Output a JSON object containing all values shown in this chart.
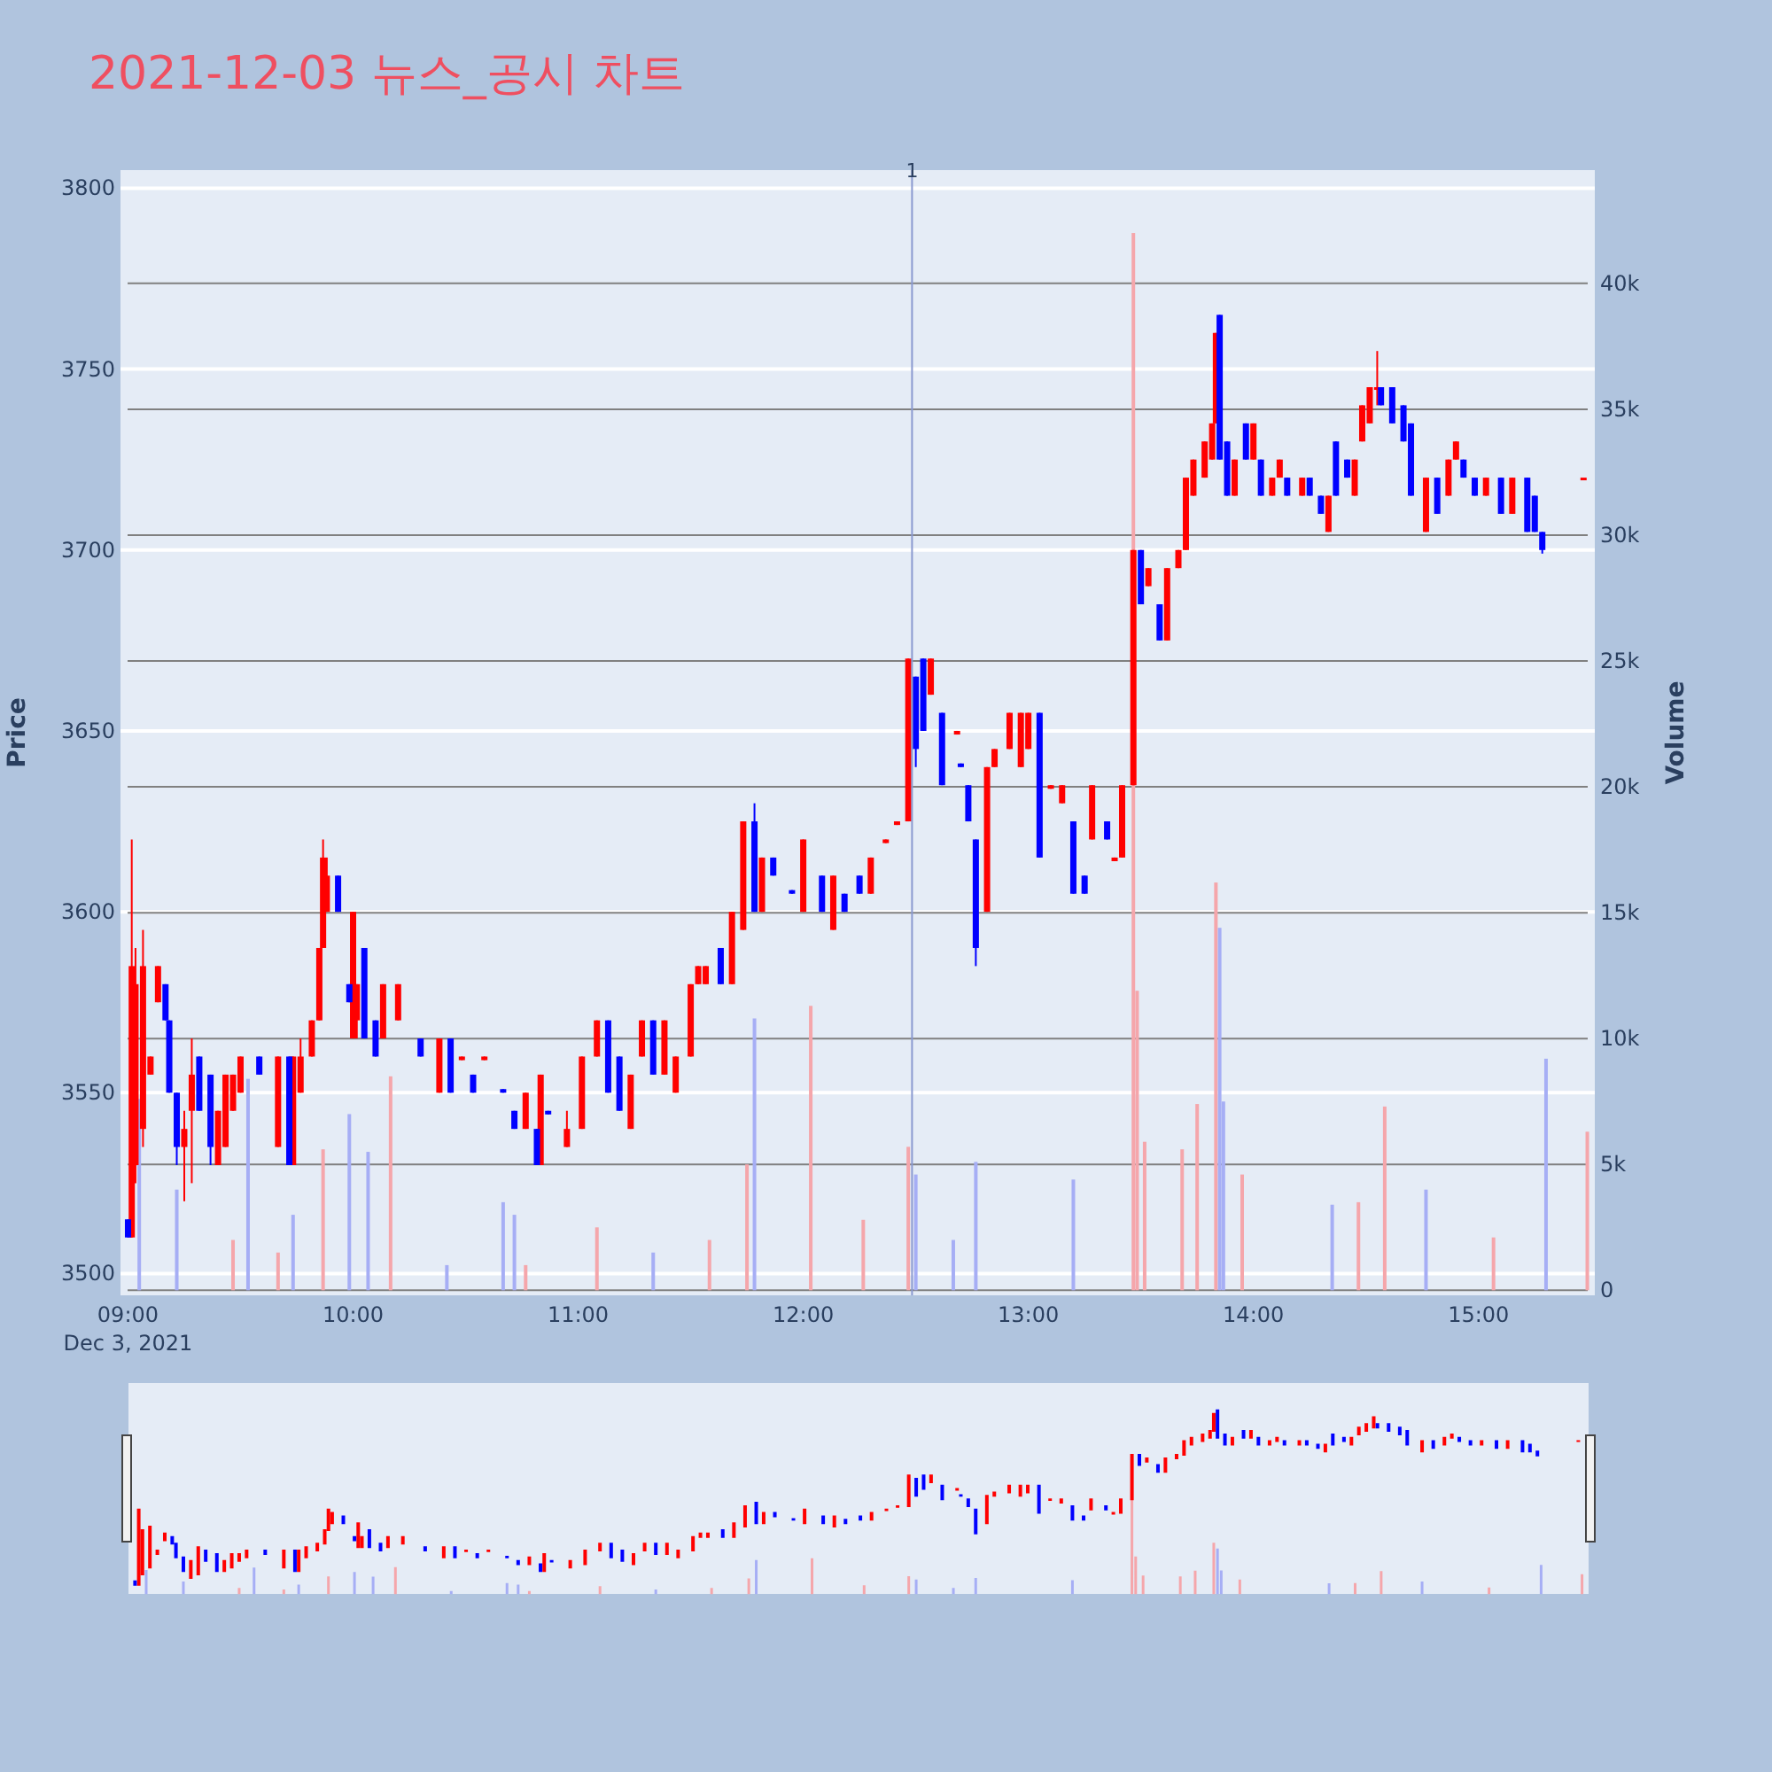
{
  "chart_data": {
    "type": "candlestick",
    "title": "2021-12-03 뉴스_공시 차트",
    "ylabel": "Price",
    "y2label": "Volume",
    "annotations": [
      "Dec 3, 2021"
    ],
    "xlim": [
      "2021-12-03T08:58",
      "2021-12-03T15:31"
    ],
    "xticks": [
      {
        "value": "2021-12-03T09:00",
        "label": "09:00"
      },
      {
        "value": "2021-12-03T10:00",
        "label": "10:00"
      },
      {
        "value": "2021-12-03T11:00",
        "label": "11:00"
      },
      {
        "value": "2021-12-03T12:00",
        "label": "12:00"
      },
      {
        "value": "2021-12-03T13:00",
        "label": "13:00"
      },
      {
        "value": "2021-12-03T14:00",
        "label": "14:00"
      },
      {
        "value": "2021-12-03T15:00",
        "label": "15:00"
      }
    ],
    "ylim": [
      3494,
      3805
    ],
    "yticks": [
      3500,
      3550,
      3600,
      3650,
      3700,
      3750,
      3800
    ],
    "y2lim": [
      -200,
      44500
    ],
    "y2ticks": [
      0,
      {
        "value": 5000,
        "label": "5k"
      },
      {
        "value": 10000,
        "label": "10k"
      },
      {
        "value": 15000,
        "label": "15k"
      },
      {
        "value": 20000,
        "label": "20k"
      },
      {
        "value": 25000,
        "label": "25k"
      },
      {
        "value": 30000,
        "label": "30k"
      },
      {
        "value": 35000,
        "label": "35k"
      },
      {
        "value": 40000,
        "label": "40k"
      }
    ],
    "grid": "y",
    "ref_lines": [
      {
        "axis": "x",
        "value": "2021-12-03T12:29",
        "label": "1",
        "color": "#8a9ad0"
      }
    ],
    "series": [
      {
        "type": "bar",
        "axis": "y2",
        "color": "#f5a6ab",
        "x": [
          "2021-12-03T09:28",
          "2021-12-03T09:40",
          "2021-12-03T09:52",
          "2021-12-03T10:10",
          "2021-12-03T10:46",
          "2021-12-03T11:05",
          "2021-12-03T11:35",
          "2021-12-03T11:45",
          "2021-12-03T12:02",
          "2021-12-03T12:16",
          "2021-12-03T12:28",
          "2021-12-03T13:28",
          "2021-12-03T13:29",
          "2021-12-03T13:31",
          "2021-12-03T13:41",
          "2021-12-03T13:45",
          "2021-12-03T13:50",
          "2021-12-03T13:57",
          "2021-12-03T14:28",
          "2021-12-03T14:35",
          "2021-12-03T15:04",
          "2021-12-03T15:29"
        ],
        "values": [
          2000,
          1500,
          5600,
          8500,
          1000,
          2500,
          2000,
          5000,
          11300,
          2800,
          5700,
          42000,
          11900,
          5900,
          5600,
          7400,
          16200,
          4600,
          3500,
          7300,
          2100,
          6300
        ]
      },
      {
        "type": "bar",
        "axis": "y2",
        "color": "#a6aef5",
        "x": [
          "2021-12-03T09:03",
          "2021-12-03T09:13",
          "2021-12-03T09:32",
          "2021-12-03T09:44",
          "2021-12-03T09:59",
          "2021-12-03T10:04",
          "2021-12-03T10:25",
          "2021-12-03T10:40",
          "2021-12-03T10:43",
          "2021-12-03T11:20",
          "2021-12-03T11:47",
          "2021-12-03T12:30",
          "2021-12-03T12:40",
          "2021-12-03T12:46",
          "2021-12-03T13:12",
          "2021-12-03T13:51",
          "2021-12-03T13:52",
          "2021-12-03T14:21",
          "2021-12-03T14:46",
          "2021-12-03T15:18"
        ],
        "values": [
          7600,
          4000,
          8400,
          3000,
          7000,
          5500,
          1000,
          3500,
          3000,
          1500,
          10800,
          4600,
          2000,
          5100,
          4400,
          14400,
          7500,
          3400,
          4000,
          9200
        ]
      },
      {
        "color": "#ff0000",
        "x": [
          "2021-12-03T09:01",
          "2021-12-03T09:02",
          "2021-12-03T09:04",
          "2021-12-03T09:06",
          "2021-12-03T09:08",
          "2021-12-03T09:15",
          "2021-12-03T09:17",
          "2021-12-03T09:24",
          "2021-12-03T09:26",
          "2021-12-03T09:28",
          "2021-12-03T09:30",
          "2021-12-03T09:40",
          "2021-12-03T09:44",
          "2021-12-03T09:46",
          "2021-12-03T09:49",
          "2021-12-03T09:51",
          "2021-12-03T09:52",
          "2021-12-03T09:53",
          "2021-12-03T10:00",
          "2021-12-03T10:01",
          "2021-12-03T10:08",
          "2021-12-03T10:12",
          "2021-12-03T10:23",
          "2021-12-03T10:29",
          "2021-12-03T10:35",
          "2021-12-03T10:46",
          "2021-12-03T10:50",
          "2021-12-03T10:57",
          "2021-12-03T11:01",
          "2021-12-03T11:05",
          "2021-12-03T11:14",
          "2021-12-03T11:17",
          "2021-12-03T11:23",
          "2021-12-03T11:26",
          "2021-12-03T11:30",
          "2021-12-03T11:32",
          "2021-12-03T11:34",
          "2021-12-03T11:41",
          "2021-12-03T11:44",
          "2021-12-03T11:49",
          "2021-12-03T12:00",
          "2021-12-03T12:08",
          "2021-12-03T12:18",
          "2021-12-03T12:22",
          "2021-12-03T12:25",
          "2021-12-03T12:28",
          "2021-12-03T12:34",
          "2021-12-03T12:41",
          "2021-12-03T12:49",
          "2021-12-03T12:51",
          "2021-12-03T12:55",
          "2021-12-03T12:58",
          "2021-12-03T13:00",
          "2021-12-03T13:06",
          "2021-12-03T13:09",
          "2021-12-03T13:17",
          "2021-12-03T13:23",
          "2021-12-03T13:25",
          "2021-12-03T13:28",
          "2021-12-03T13:32",
          "2021-12-03T13:37",
          "2021-12-03T13:40",
          "2021-12-03T13:42",
          "2021-12-03T13:44",
          "2021-12-03T13:47",
          "2021-12-03T13:49",
          "2021-12-03T13:50",
          "2021-12-03T13:55",
          "2021-12-03T14:00",
          "2021-12-03T14:05",
          "2021-12-03T14:07",
          "2021-12-03T14:13",
          "2021-12-03T14:20",
          "2021-12-03T14:27",
          "2021-12-03T14:29",
          "2021-12-03T14:31",
          "2021-12-03T14:33",
          "2021-12-03T14:46",
          "2021-12-03T14:52",
          "2021-12-03T14:54",
          "2021-12-03T15:02",
          "2021-12-03T15:09",
          "2021-12-03T15:28"
        ],
        "ohlc": [
          [
            3510,
            3620,
            3510,
            3585
          ],
          [
            3530,
            3590,
            3525,
            3580
          ],
          [
            3540,
            3595,
            3535,
            3585
          ],
          [
            3555,
            3560,
            3555,
            3560
          ],
          [
            3575,
            3585,
            3575,
            3585
          ],
          [
            3535,
            3545,
            3520,
            3540
          ],
          [
            3545,
            3565,
            3525,
            3555
          ],
          [
            3530,
            3545,
            3530,
            3545
          ],
          [
            3535,
            3555,
            3535,
            3555
          ],
          [
            3545,
            3555,
            3545,
            3555
          ],
          [
            3550,
            3560,
            3550,
            3560
          ],
          [
            3535,
            3560,
            3535,
            3560
          ],
          [
            3530,
            3560,
            3530,
            3560
          ],
          [
            3550,
            3565,
            3550,
            3560
          ],
          [
            3560,
            3570,
            3560,
            3570
          ],
          [
            3570,
            3590,
            3570,
            3590
          ],
          [
            3590,
            3620,
            3590,
            3615
          ],
          [
            3600,
            3615,
            3600,
            3610
          ],
          [
            3565,
            3600,
            3565,
            3600
          ],
          [
            3570,
            3580,
            3565,
            3580
          ],
          [
            3565,
            3580,
            3565,
            3580
          ],
          [
            3570,
            3580,
            3570,
            3580
          ],
          [
            3550,
            3565,
            3550,
            3565
          ],
          [
            3559,
            3560,
            3559,
            3560
          ],
          [
            3559,
            3560,
            3559,
            3560
          ],
          [
            3540,
            3550,
            3540,
            3550
          ],
          [
            3530,
            3555,
            3530,
            3555
          ],
          [
            3535,
            3545,
            3535,
            3540
          ],
          [
            3540,
            3560,
            3540,
            3560
          ],
          [
            3560,
            3570,
            3560,
            3570
          ],
          [
            3540,
            3555,
            3540,
            3555
          ],
          [
            3560,
            3570,
            3560,
            3570
          ],
          [
            3555,
            3570,
            3555,
            3570
          ],
          [
            3550,
            3560,
            3550,
            3560
          ],
          [
            3560,
            3580,
            3560,
            3580
          ],
          [
            3580,
            3585,
            3580,
            3585
          ],
          [
            3580,
            3585,
            3580,
            3585
          ],
          [
            3580,
            3600,
            3580,
            3600
          ],
          [
            3595,
            3625,
            3595,
            3625
          ],
          [
            3600,
            3615,
            3600,
            3615
          ],
          [
            3600,
            3620,
            3600,
            3620
          ],
          [
            3595,
            3610,
            3595,
            3610
          ],
          [
            3605,
            3615,
            3605,
            3615
          ],
          [
            3619,
            3620,
            3619,
            3620
          ],
          [
            3624,
            3625,
            3624,
            3625
          ],
          [
            3625,
            3670,
            3625,
            3670
          ],
          [
            3660,
            3670,
            3660,
            3670
          ],
          [
            3649,
            3650,
            3649,
            3650
          ],
          [
            3600,
            3640,
            3600,
            3640
          ],
          [
            3640,
            3645,
            3640,
            3645
          ],
          [
            3645,
            3655,
            3645,
            3655
          ],
          [
            3640,
            3655,
            3640,
            3655
          ],
          [
            3645,
            3655,
            3645,
            3655
          ],
          [
            3634,
            3635,
            3634,
            3635
          ],
          [
            3630,
            3635,
            3630,
            3635
          ],
          [
            3620,
            3635,
            3620,
            3635
          ],
          [
            3614,
            3615,
            3614,
            3615
          ],
          [
            3615,
            3635,
            3615,
            3635
          ],
          [
            3635,
            3700,
            3635,
            3700
          ],
          [
            3690,
            3695,
            3690,
            3695
          ],
          [
            3675,
            3695,
            3675,
            3695
          ],
          [
            3695,
            3700,
            3695,
            3700
          ],
          [
            3700,
            3720,
            3700,
            3720
          ],
          [
            3715,
            3725,
            3715,
            3725
          ],
          [
            3720,
            3730,
            3720,
            3730
          ],
          [
            3725,
            3735,
            3725,
            3735
          ],
          [
            3735,
            3760,
            3735,
            3760
          ],
          [
            3715,
            3725,
            3715,
            3725
          ],
          [
            3725,
            3735,
            3725,
            3735
          ],
          [
            3715,
            3720,
            3715,
            3720
          ],
          [
            3720,
            3725,
            3720,
            3725
          ],
          [
            3715,
            3720,
            3715,
            3720
          ],
          [
            3705,
            3715,
            3705,
            3715
          ],
          [
            3715,
            3725,
            3715,
            3725
          ],
          [
            3730,
            3740,
            3730,
            3740
          ],
          [
            3735,
            3745,
            3735,
            3745
          ],
          [
            3745,
            3755,
            3740,
            3745
          ],
          [
            3705,
            3720,
            3705,
            3720
          ],
          [
            3715,
            3725,
            3715,
            3725
          ],
          [
            3725,
            3730,
            3725,
            3730
          ],
          [
            3715,
            3720,
            3715,
            3720
          ],
          [
            3710,
            3720,
            3710,
            3720
          ],
          [
            3720,
            3720,
            3720,
            3720
          ]
        ]
      },
      {
        "color": "#0000ff",
        "x": [
          "2021-12-03T09:00",
          "2021-12-03T09:10",
          "2021-12-03T09:11",
          "2021-12-03T09:13",
          "2021-12-03T09:19",
          "2021-12-03T09:22",
          "2021-12-03T09:35",
          "2021-12-03T09:43",
          "2021-12-03T09:56",
          "2021-12-03T09:59",
          "2021-12-03T10:03",
          "2021-12-03T10:06",
          "2021-12-03T10:18",
          "2021-12-03T10:26",
          "2021-12-03T10:32",
          "2021-12-03T10:40",
          "2021-12-03T10:43",
          "2021-12-03T10:49",
          "2021-12-03T10:52",
          "2021-12-03T11:08",
          "2021-12-03T11:11",
          "2021-12-03T11:20",
          "2021-12-03T11:38",
          "2021-12-03T11:47",
          "2021-12-03T11:52",
          "2021-12-03T11:57",
          "2021-12-03T12:05",
          "2021-12-03T12:11",
          "2021-12-03T12:15",
          "2021-12-03T12:30",
          "2021-12-03T12:32",
          "2021-12-03T12:37",
          "2021-12-03T12:42",
          "2021-12-03T12:44",
          "2021-12-03T12:46",
          "2021-12-03T13:03",
          "2021-12-03T13:12",
          "2021-12-03T13:15",
          "2021-12-03T13:21",
          "2021-12-03T13:30",
          "2021-12-03T13:35",
          "2021-12-03T13:51",
          "2021-12-03T13:53",
          "2021-12-03T13:58",
          "2021-12-03T14:02",
          "2021-12-03T14:09",
          "2021-12-03T14:15",
          "2021-12-03T14:18",
          "2021-12-03T14:22",
          "2021-12-03T14:25",
          "2021-12-03T14:34",
          "2021-12-03T14:37",
          "2021-12-03T14:40",
          "2021-12-03T14:42",
          "2021-12-03T14:49",
          "2021-12-03T14:56",
          "2021-12-03T14:59",
          "2021-12-03T15:06",
          "2021-12-03T15:13",
          "2021-12-03T15:15",
          "2021-12-03T15:17"
        ],
        "ohlc": [
          [
            3515,
            3515,
            3510,
            3510
          ],
          [
            3580,
            3580,
            3570,
            3570
          ],
          [
            3570,
            3570,
            3550,
            3550
          ],
          [
            3550,
            3550,
            3530,
            3535
          ],
          [
            3560,
            3560,
            3545,
            3545
          ],
          [
            3555,
            3555,
            3530,
            3535
          ],
          [
            3560,
            3560,
            3555,
            3555
          ],
          [
            3560,
            3560,
            3530,
            3530
          ],
          [
            3610,
            3610,
            3600,
            3600
          ],
          [
            3580,
            3580,
            3575,
            3575
          ],
          [
            3590,
            3590,
            3565,
            3565
          ],
          [
            3570,
            3570,
            3560,
            3560
          ],
          [
            3565,
            3565,
            3560,
            3560
          ],
          [
            3565,
            3565,
            3550,
            3550
          ],
          [
            3555,
            3555,
            3550,
            3550
          ],
          [
            3551,
            3551,
            3550,
            3550
          ],
          [
            3545,
            3545,
            3540,
            3540
          ],
          [
            3540,
            3540,
            3530,
            3530
          ],
          [
            3545,
            3545,
            3544,
            3544
          ],
          [
            3570,
            3570,
            3550,
            3550
          ],
          [
            3560,
            3560,
            3545,
            3545
          ],
          [
            3570,
            3570,
            3555,
            3555
          ],
          [
            3590,
            3590,
            3580,
            3580
          ],
          [
            3625,
            3630,
            3600,
            3600
          ],
          [
            3615,
            3615,
            3610,
            3610
          ],
          [
            3606,
            3606,
            3605,
            3605
          ],
          [
            3610,
            3610,
            3600,
            3600
          ],
          [
            3605,
            3605,
            3600,
            3600
          ],
          [
            3610,
            3610,
            3605,
            3605
          ],
          [
            3665,
            3665,
            3640,
            3645
          ],
          [
            3670,
            3670,
            3650,
            3650
          ],
          [
            3655,
            3655,
            3635,
            3635
          ],
          [
            3641,
            3641,
            3640,
            3640
          ],
          [
            3635,
            3635,
            3625,
            3625
          ],
          [
            3620,
            3620,
            3585,
            3590
          ],
          [
            3655,
            3655,
            3615,
            3615
          ],
          [
            3625,
            3625,
            3605,
            3605
          ],
          [
            3610,
            3610,
            3605,
            3605
          ],
          [
            3625,
            3625,
            3620,
            3620
          ],
          [
            3700,
            3700,
            3685,
            3685
          ],
          [
            3685,
            3685,
            3675,
            3675
          ],
          [
            3765,
            3765,
            3725,
            3725
          ],
          [
            3730,
            3730,
            3715,
            3715
          ],
          [
            3735,
            3735,
            3725,
            3725
          ],
          [
            3725,
            3725,
            3715,
            3715
          ],
          [
            3720,
            3720,
            3715,
            3715
          ],
          [
            3720,
            3720,
            3715,
            3715
          ],
          [
            3715,
            3715,
            3710,
            3710
          ],
          [
            3730,
            3730,
            3715,
            3715
          ],
          [
            3725,
            3725,
            3720,
            3720
          ],
          [
            3745,
            3745,
            3740,
            3740
          ],
          [
            3745,
            3745,
            3735,
            3735
          ],
          [
            3740,
            3740,
            3730,
            3730
          ],
          [
            3735,
            3735,
            3715,
            3715
          ],
          [
            3720,
            3720,
            3710,
            3710
          ],
          [
            3725,
            3725,
            3720,
            3720
          ],
          [
            3720,
            3720,
            3715,
            3715
          ],
          [
            3720,
            3720,
            3710,
            3710
          ],
          [
            3720,
            3720,
            3705,
            3705
          ],
          [
            3715,
            3715,
            3705,
            3705
          ],
          [
            3705,
            3705,
            3699,
            3700
          ]
        ]
      }
    ]
  }
}
